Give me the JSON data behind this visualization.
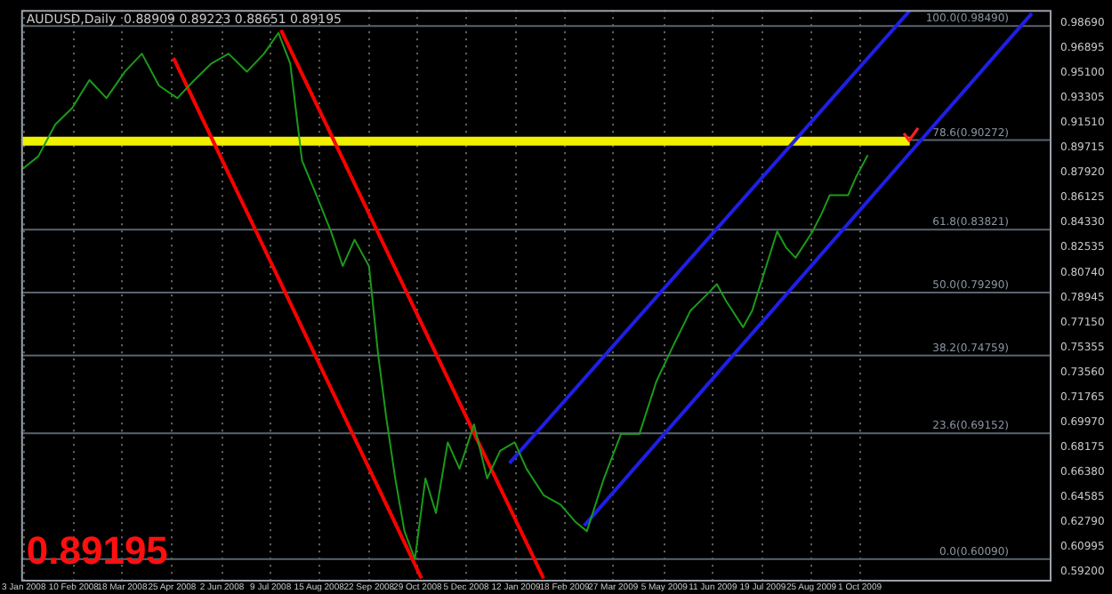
{
  "chart_data": {
    "type": "line",
    "title": "AUDUSD,Daily  0.88909 0.89223 0.88651 0.89195",
    "annotations": [
      "0.89195"
    ],
    "xlim": [
      "2008-01-01",
      "2010-02-24"
    ],
    "xticks": [
      {
        "value": "2008-01-03",
        "label": "3 Jan 2008"
      },
      {
        "value": "2008-02-10",
        "label": "10 Feb 2008"
      },
      {
        "value": "2008-03-18",
        "label": "18 Mar 2008"
      },
      {
        "value": "2008-04-25",
        "label": "25 Apr 2008"
      },
      {
        "value": "2008-06-02",
        "label": "2 Jun 2008"
      },
      {
        "value": "2008-07-09",
        "label": "9 Jul 2008"
      },
      {
        "value": "2008-08-15",
        "label": "15 Aug 2008"
      },
      {
        "value": "2008-09-22",
        "label": "22 Sep 2008"
      },
      {
        "value": "2008-10-29",
        "label": "29 Oct 2008"
      },
      {
        "value": "2008-12-05",
        "label": "5 Dec 2008"
      },
      {
        "value": "2009-01-12",
        "label": "12 Jan 2009"
      },
      {
        "value": "2009-02-18",
        "label": "18 Feb 2009"
      },
      {
        "value": "2009-03-27",
        "label": "27 Mar 2009"
      },
      {
        "value": "2009-05-05",
        "label": "5 May 2009"
      },
      {
        "value": "2009-06-11",
        "label": "11 Jun 2009"
      },
      {
        "value": "2009-07-19",
        "label": "19 Jul 2009"
      },
      {
        "value": "2009-08-25",
        "label": "25 Aug 2009"
      },
      {
        "value": "2009-10-01",
        "label": "1 Oct 2009"
      }
    ],
    "ylim": [
      0.586,
      0.9965
    ],
    "yticks": [
      {
        "value": 0.592,
        "label": "0.59200"
      },
      {
        "value": 0.60995,
        "label": "0.60995"
      },
      {
        "value": 0.6279,
        "label": "0.62790"
      },
      {
        "value": 0.64585,
        "label": "0.64585"
      },
      {
        "value": 0.6638,
        "label": "0.66380"
      },
      {
        "value": 0.68175,
        "label": "0.68175"
      },
      {
        "value": 0.6997,
        "label": "0.69970"
      },
      {
        "value": 0.71765,
        "label": "0.71765"
      },
      {
        "value": 0.7356,
        "label": "0.73560"
      },
      {
        "value": 0.75355,
        "label": "0.75355"
      },
      {
        "value": 0.7715,
        "label": "0.77150"
      },
      {
        "value": 0.78945,
        "label": "0.78945"
      },
      {
        "value": 0.8074,
        "label": "0.80740"
      },
      {
        "value": 0.82535,
        "label": "0.82535"
      },
      {
        "value": 0.8433,
        "label": "0.84330"
      },
      {
        "value": 0.86125,
        "label": "0.86125"
      },
      {
        "value": 0.8792,
        "label": "0.87920"
      },
      {
        "value": 0.89715,
        "label": "0.89715"
      },
      {
        "value": 0.9151,
        "label": "0.91510"
      },
      {
        "value": 0.93305,
        "label": "0.93305"
      },
      {
        "value": 0.951,
        "label": "0.95100"
      },
      {
        "value": 0.96895,
        "label": "0.96895"
      },
      {
        "value": 0.9869,
        "label": "0.98690"
      }
    ],
    "grid": "x",
    "legend": false,
    "marker": "none",
    "ref_lines": [
      {
        "axis": "y",
        "value": 0.9849,
        "label": "100.0(0.98490)",
        "color": "#5a6470"
      },
      {
        "axis": "y",
        "value": 0.90272,
        "label": "78.6(0.90272)",
        "color": "#5a6470"
      },
      {
        "axis": "y",
        "value": 0.83821,
        "label": "61.8(0.83821)",
        "color": "#5a6470"
      },
      {
        "axis": "y",
        "value": 0.7929,
        "label": "50.0(0.79290)",
        "color": "#5a6470"
      },
      {
        "axis": "y",
        "value": 0.74759,
        "label": "38.2(0.74759)",
        "color": "#5a6470"
      },
      {
        "axis": "y",
        "value": 0.69152,
        "label": "23.6(0.69152)",
        "color": "#5a6470"
      },
      {
        "axis": "y",
        "value": 0.6009,
        "label": "0.0(0.60090)",
        "color": "#5a6470"
      }
    ],
    "series": [
      {
        "color": "#1a9a1a",
        "x": [
          "2008-01-02",
          "2008-01-14",
          "2008-01-27",
          "2008-02-09",
          "2008-02-22",
          "2008-03-06",
          "2008-03-20",
          "2008-04-02",
          "2008-04-15",
          "2008-04-29",
          "2008-05-12",
          "2008-05-25",
          "2008-06-07",
          "2008-06-21",
          "2008-07-04",
          "2008-07-15",
          "2008-07-24",
          "2008-08-02",
          "2008-08-13",
          "2008-08-24",
          "2008-09-02",
          "2008-09-11",
          "2008-09-22",
          "2008-09-29",
          "2008-10-05",
          "2008-10-12",
          "2008-10-19",
          "2008-10-27",
          "2008-11-04",
          "2008-11-12",
          "2008-11-21",
          "2008-11-30",
          "2008-12-11",
          "2008-12-21",
          "2008-12-31",
          "2009-01-11",
          "2009-01-20",
          "2009-02-02",
          "2009-02-15",
          "2009-02-26",
          "2009-03-07",
          "2009-03-20",
          "2009-04-02",
          "2009-04-16",
          "2009-04-29",
          "2009-05-12",
          "2009-05-25",
          "2009-06-08",
          "2009-06-14",
          "2009-06-21",
          "2009-07-04",
          "2009-07-11",
          "2009-07-30",
          "2009-08-06",
          "2009-08-13",
          "2009-08-26",
          "2009-09-02",
          "2009-09-08",
          "2009-09-22",
          "2009-09-28",
          "2009-10-07"
        ],
        "values": [
          0.882,
          0.891,
          0.914,
          0.926,
          0.946,
          0.933,
          0.952,
          0.965,
          0.942,
          0.933,
          0.946,
          0.958,
          0.965,
          0.952,
          0.965,
          0.98,
          0.958,
          0.888,
          0.863,
          0.837,
          0.812,
          0.831,
          0.812,
          0.748,
          0.704,
          0.659,
          0.621,
          0.601,
          0.659,
          0.634,
          0.685,
          0.666,
          0.698,
          0.659,
          0.679,
          0.685,
          0.666,
          0.647,
          0.64,
          0.628,
          0.621,
          0.659,
          0.691,
          0.691,
          0.729,
          0.755,
          0.78,
          0.793,
          0.799,
          0.787,
          0.768,
          0.78,
          0.837,
          0.825,
          0.818,
          0.837,
          0.85,
          0.863,
          0.863,
          0.876,
          0.89195
        ]
      },
      {
        "color": "#ff0000",
        "x": [
          "2008-04-26",
          "2008-11-01"
        ],
        "values": [
          0.962,
          0.587
        ]
      },
      {
        "color": "#ff0000",
        "x": [
          "2008-07-17",
          "2009-02-02"
        ],
        "values": [
          0.982,
          0.587
        ]
      },
      {
        "color": "#1f1fe6",
        "x": [
          "2009-03-05",
          "2010-02-09"
        ],
        "values": [
          0.625,
          0.994
        ]
      },
      {
        "color": "#1f1fe6",
        "x": [
          "2009-01-07",
          "2009-11-08"
        ],
        "values": [
          0.67,
          0.996
        ]
      },
      {
        "color": "#f0f000",
        "x": [
          "2008-01-01",
          "2009-11-08"
        ],
        "values": [
          0.902,
          0.902
        ]
      }
    ]
  }
}
